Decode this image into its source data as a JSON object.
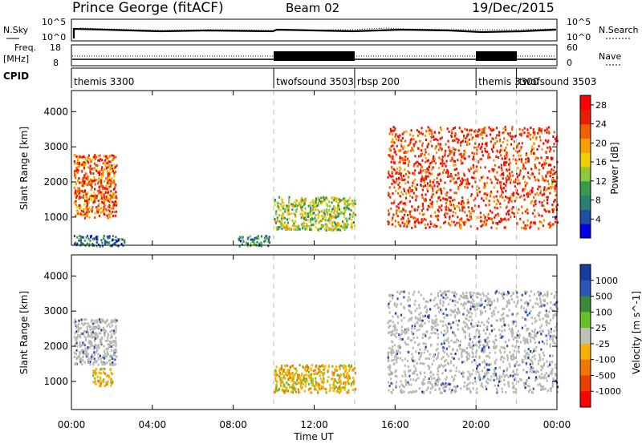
{
  "header": {
    "station": "Prince George (fitACF)",
    "beam": "Beam 02",
    "date": "19/Dec/2015"
  },
  "noise_panel": {
    "left_label": "N.Sky",
    "right_label": "N.Search",
    "left_ticks": [
      "10^5",
      "10^0"
    ],
    "right_ticks": [
      "10^5",
      "10^0"
    ]
  },
  "freq_panel": {
    "left_label_line1": "Freq.",
    "left_label_line2": "[MHz]",
    "right_label": "Nave",
    "left_ticks": [
      "18",
      "8"
    ],
    "right_ticks": [
      "60",
      "0"
    ]
  },
  "cpid_panel": {
    "label": "CPID",
    "segments": [
      {
        "name": "themis 3300",
        "start_h": 0.0,
        "end_h": 10.0
      },
      {
        "name": "twofsound 3503",
        "start_h": 10.0,
        "end_h": 14.0
      },
      {
        "name": "rbsp 200",
        "start_h": 14.0,
        "end_h": 20.0
      },
      {
        "name": "themis 3300",
        "start_h": 20.0,
        "end_h": 22.0
      },
      {
        "name": "twofsound 3503",
        "start_h": 22.0,
        "end_h": 24.0
      }
    ]
  },
  "colors": {
    "power_scale": [
      "#0000e0",
      "#1e4fa0",
      "#2a7f70",
      "#3a9a4a",
      "#8cc83c",
      "#f2d000",
      "#f5a000",
      "#f06000",
      "#e82000",
      "#ff0000"
    ],
    "velocity_scale": [
      "#1a3aa0",
      "#2c55b8",
      "#3a8a3a",
      "#66c02a",
      "#c0c0b8",
      "#f5b000",
      "#f07800",
      "#e84000",
      "#ff0000"
    ],
    "ground_scatter": "#b8b8b0"
  },
  "chart_data": [
    {
      "type": "heatmap",
      "title": "",
      "xlabel": "Time UT",
      "ylabel": "Slant Range [km]",
      "x_ticks": [
        "00:00",
        "04:00",
        "08:00",
        "12:00",
        "16:00",
        "20:00",
        "00:00"
      ],
      "xlim_hours": [
        0,
        24
      ],
      "ylim_km": [
        200,
        4600
      ],
      "y_ticks": [
        1000,
        2000,
        3000,
        4000
      ],
      "colorbar": {
        "label": "Power [dB]",
        "ticks": [
          4,
          8,
          12,
          16,
          20,
          24,
          28
        ],
        "range": [
          0,
          30
        ]
      },
      "echo_regions": [
        {
          "t0": 0.1,
          "t1": 2.2,
          "r0": 1000,
          "r1": 2800,
          "power_db": 24
        },
        {
          "t0": 0.1,
          "t1": 2.6,
          "r0": 200,
          "r1": 500,
          "power_db": 6
        },
        {
          "t0": 8.2,
          "t1": 9.8,
          "r0": 200,
          "r1": 500,
          "power_db": 8
        },
        {
          "t0": 10.0,
          "t1": 14.0,
          "r0": 650,
          "r1": 1600,
          "power_db": 14
        },
        {
          "t0": 15.6,
          "t1": 24.0,
          "r0": 700,
          "r1": 3600,
          "power_db": 26
        }
      ]
    },
    {
      "type": "heatmap",
      "title": "",
      "xlabel": "Time UT",
      "ylabel": "Slant Range [km]",
      "x_ticks": [
        "00:00",
        "04:00",
        "08:00",
        "12:00",
        "16:00",
        "20:00",
        "00:00"
      ],
      "xlim_hours": [
        0,
        24
      ],
      "ylim_km": [
        200,
        4600
      ],
      "y_ticks": [
        1000,
        2000,
        3000,
        4000
      ],
      "colorbar": {
        "label": "Velocity [m s^-1]",
        "ticks": [
          "1000",
          "500",
          "100",
          "25",
          "-25",
          "-100",
          "-500",
          "-1000"
        ]
      },
      "echo_regions": [
        {
          "t0": 0.1,
          "t1": 2.2,
          "r0": 1500,
          "r1": 2800,
          "velocity_ms": 0
        },
        {
          "t0": 1.0,
          "t1": 2.0,
          "r0": 900,
          "r1": 1400,
          "velocity_ms": -150
        },
        {
          "t0": 10.0,
          "t1": 14.0,
          "r0": 700,
          "r1": 1500,
          "velocity_ms": -120
        },
        {
          "t0": 15.6,
          "t1": 24.0,
          "r0": 700,
          "r1": 3600,
          "velocity_ms": 0
        }
      ]
    }
  ]
}
